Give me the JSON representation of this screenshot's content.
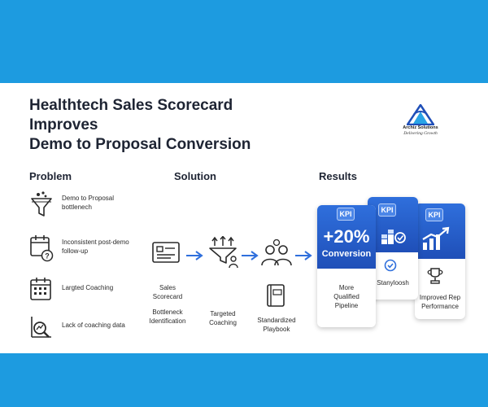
{
  "header": {
    "title_line1": "Healthtech Sales Scorecard Improves",
    "title_line2": "Demo to Proposal Conversion"
  },
  "logo": {
    "name": "Archiz Solutions",
    "tagline": "Delivering Growth",
    "icon": "triangle-logo-icon"
  },
  "columns": {
    "problem": "Problem",
    "solution": "Solution",
    "results": "Results"
  },
  "problems": [
    {
      "icon": "funnel-icon",
      "line1": "Demo to Proposal",
      "line2": "bottlenech"
    },
    {
      "icon": "calendar-question-icon",
      "line1": "Inconsistent post-demo",
      "line2": "follow-up"
    },
    {
      "icon": "calendar-grid-icon",
      "line1": "Largted Coaching",
      "line2": ""
    },
    {
      "icon": "magnifier-chart-icon",
      "line1": "Lack of coaching data",
      "line2": ""
    }
  ],
  "solutions": [
    {
      "icon": "scorecard-icon",
      "line1": "Sales",
      "line2": "Scorecard",
      "line3": "Bottleneck",
      "line4": "Identification"
    },
    {
      "icon": "funnel-people-icon",
      "line1": "Targeted",
      "line2": "Coaching"
    },
    {
      "icon": "team-icon",
      "line1": "",
      "line2": ""
    },
    {
      "icon": "playbook-icon",
      "line1": "Standardized",
      "line2": "Playbook"
    }
  ],
  "results": [
    {
      "kpi": "KPI",
      "value": "+20%",
      "sub": "Conversion",
      "line1": "More",
      "line2": "Qualified",
      "line3": "Pipeline"
    },
    {
      "kpi": "KPI",
      "icon": "growth-blocks-icon",
      "line1": "Stanyloosh"
    },
    {
      "kpi": "KPI",
      "icon": "rising-chart-icon",
      "line1": "Improved Rep",
      "line2": "Performance"
    }
  ],
  "colors": {
    "band": "#1d9be0",
    "card_blue": "#1f4fb8",
    "arrow": "#2f6fdc"
  }
}
